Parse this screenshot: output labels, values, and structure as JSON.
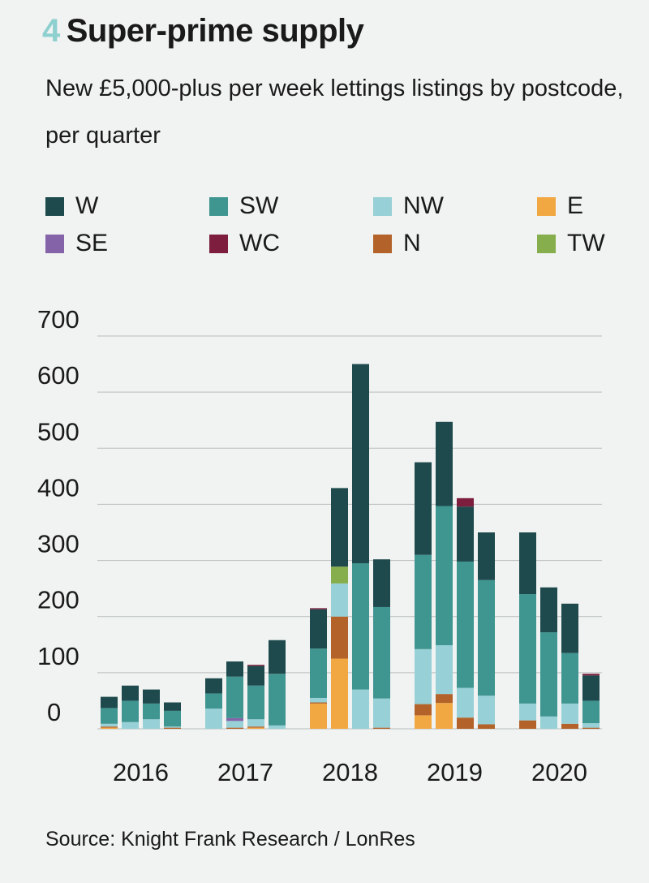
{
  "header": {
    "number": "4",
    "title": "Super-prime supply",
    "subtitle": "New £5,000-plus per week lettings listings by postcode, per quarter"
  },
  "source": "Source: Knight Frank Research / LonRes",
  "colors": {
    "W": "#1f4a4d",
    "SW": "#3f9590",
    "NW": "#97d0d6",
    "E": "#f1a843",
    "SE": "#8463a8",
    "WC": "#7e1e3e",
    "N": "#b3632a",
    "TW": "#86ae4c",
    "grid": "#b9bdbd",
    "background": "#f0f3f2",
    "title_number": "#8ecfcf"
  },
  "chart_data": {
    "type": "bar",
    "stacked": true,
    "ylim": [
      0,
      700
    ],
    "yticks": [
      0,
      100,
      200,
      300,
      400,
      500,
      600,
      700
    ],
    "grid": true,
    "legend_position": "top",
    "year_labels": [
      "2016",
      "2017",
      "2018",
      "2019",
      "2020"
    ],
    "categories": [
      "2016 Q1",
      "2016 Q2",
      "2016 Q3",
      "2016 Q4",
      "2017 Q1",
      "2017 Q2",
      "2017 Q3",
      "2017 Q4",
      "2018 Q1",
      "2018 Q2",
      "2018 Q3",
      "2018 Q4",
      "2019 Q1",
      "2019 Q2",
      "2019 Q3",
      "2019 Q4",
      "2020 Q1",
      "2020 Q2",
      "2020 Q3",
      "2020 Q4"
    ],
    "series": [
      {
        "name": "E",
        "values": [
          2,
          0,
          0,
          0,
          0,
          0,
          2,
          0,
          45,
          125,
          0,
          0,
          24,
          46,
          0,
          0,
          0,
          0,
          0,
          0
        ]
      },
      {
        "name": "N",
        "values": [
          2,
          0,
          0,
          2,
          0,
          2,
          2,
          0,
          2,
          75,
          0,
          2,
          20,
          16,
          20,
          8,
          15,
          0,
          9,
          2
        ]
      },
      {
        "name": "NW",
        "values": [
          5,
          12,
          17,
          2,
          36,
          12,
          13,
          6,
          8,
          59,
          70,
          52,
          98,
          87,
          53,
          51,
          30,
          22,
          36,
          8
        ]
      },
      {
        "name": "SE",
        "values": [
          0,
          0,
          0,
          0,
          0,
          5,
          0,
          0,
          0,
          0,
          0,
          0,
          0,
          0,
          0,
          0,
          0,
          0,
          0,
          0
        ]
      },
      {
        "name": "SW",
        "values": [
          28,
          38,
          28,
          28,
          27,
          74,
          60,
          92,
          88,
          0,
          225,
          163,
          168,
          248,
          225,
          206,
          195,
          150,
          90,
          40
        ]
      },
      {
        "name": "TW",
        "values": [
          0,
          0,
          0,
          0,
          0,
          0,
          0,
          0,
          0,
          30,
          0,
          0,
          0,
          0,
          0,
          0,
          0,
          0,
          0,
          0
        ]
      },
      {
        "name": "W",
        "values": [
          20,
          27,
          25,
          15,
          27,
          27,
          35,
          60,
          70,
          140,
          355,
          85,
          165,
          150,
          98,
          85,
          110,
          80,
          88,
          45
        ]
      },
      {
        "name": "WC",
        "values": [
          0,
          0,
          0,
          0,
          0,
          0,
          2,
          0,
          2,
          0,
          0,
          0,
          0,
          0,
          15,
          0,
          0,
          0,
          0,
          3
        ]
      }
    ]
  },
  "legend": {
    "items": [
      {
        "key": "W",
        "label": "W"
      },
      {
        "key": "SW",
        "label": "SW"
      },
      {
        "key": "NW",
        "label": "NW"
      },
      {
        "key": "E",
        "label": "E"
      },
      {
        "key": "SE",
        "label": "SE"
      },
      {
        "key": "WC",
        "label": "WC"
      },
      {
        "key": "N",
        "label": "N"
      },
      {
        "key": "TW",
        "label": "TW"
      }
    ]
  }
}
